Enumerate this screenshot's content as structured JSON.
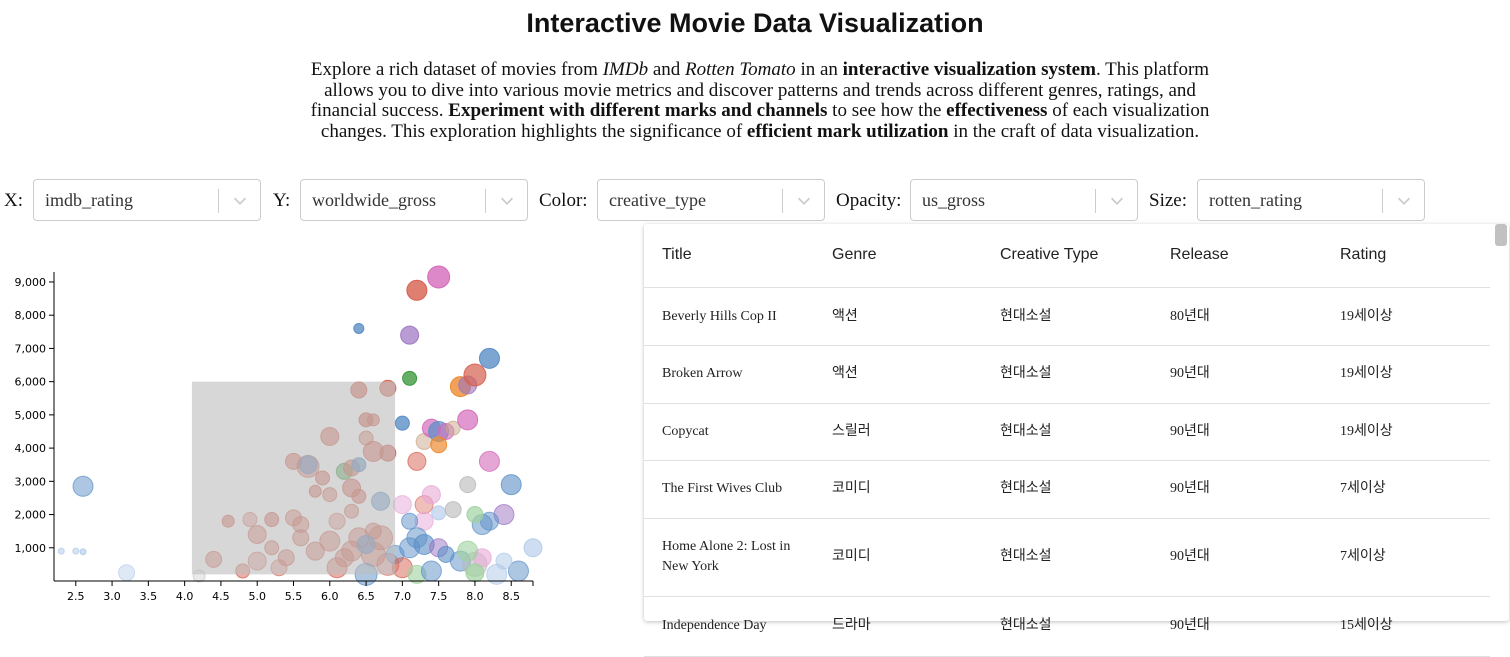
{
  "page": {
    "title": "Interactive Movie Data Visualization",
    "intro": {
      "p1": "Explore a rich dataset of movies from ",
      "imdb": "IMDb",
      "p2": " and ",
      "rotten": "Rotten Tomato",
      "p3": " in an ",
      "b1": "interactive visualization system",
      "p4": ". This platform allows you to dive into various movie metrics and discover patterns and trends across different genres, ratings, and financial success. ",
      "b2": "Experiment with different marks and channels",
      "p5": " to see how the ",
      "b3": "effectiveness",
      "p6": " of each visualization changes. This exploration highlights the significance of ",
      "b4": "efficient mark utilization",
      "p7": " in the craft of data visualization."
    }
  },
  "controls": [
    {
      "label": "X:",
      "value": "imdb_rating"
    },
    {
      "label": "Y:",
      "value": "worldwide_gross"
    },
    {
      "label": "Color:",
      "value": "creative_type"
    },
    {
      "label": "Opacity:",
      "value": "us_gross"
    },
    {
      "label": "Size:",
      "value": "rotten_rating"
    }
  ],
  "icons": {
    "dropdown": "chevron-down-icon"
  },
  "table": {
    "columns": [
      "Title",
      "Genre",
      "Creative Type",
      "Release",
      "Rating"
    ],
    "rows": [
      [
        "Beverly Hills Cop II",
        "액션",
        "현대소설",
        "80년대",
        "19세이상"
      ],
      [
        "Broken Arrow",
        "액션",
        "현대소설",
        "90년대",
        "19세이상"
      ],
      [
        "Copycat",
        "스릴러",
        "현대소설",
        "90년대",
        "19세이상"
      ],
      [
        "The First Wives Club",
        "코미디",
        "현대소설",
        "90년대",
        "7세이상"
      ],
      [
        "Home Alone 2: Lost in New York",
        "코미디",
        "현대소설",
        "90년대",
        "7세이상"
      ],
      [
        "Independence Day",
        "드라마",
        "현대소설",
        "90년대",
        "15세이상"
      ]
    ]
  },
  "chart_data": {
    "type": "scatter",
    "xlim": [
      2.2,
      8.8
    ],
    "ylim": [
      0,
      9300
    ],
    "x_ticks": [
      "2.5",
      "3.0",
      "3.5",
      "4.0",
      "4.5",
      "5.0",
      "5.5",
      "6.0",
      "6.5",
      "7.0",
      "7.5",
      "8.0",
      "8.5"
    ],
    "x_tick_values": [
      2.5,
      3.0,
      3.5,
      4.0,
      4.5,
      5.0,
      5.5,
      6.0,
      6.5,
      7.0,
      7.5,
      8.0,
      8.5
    ],
    "y_ticks": [
      "1,000",
      "2,000",
      "3,000",
      "4,000",
      "5,000",
      "6,000",
      "7,000",
      "8,000",
      "9,000"
    ],
    "y_tick_values": [
      1000,
      2000,
      3000,
      4000,
      5000,
      6000,
      7000,
      8000,
      9000
    ],
    "brush": {
      "x0": 4.1,
      "x1": 6.9,
      "y0": 200,
      "y1": 6000
    },
    "colors": {
      "red": "#d65f4f",
      "blue": "#5b8fc7",
      "purple": "#9b72c0",
      "orange": "#ee8a2e",
      "green": "#3f9a3f",
      "pink": "#d46bbb",
      "lightblue": "#aec7e8",
      "lightpink": "#e7a8d8",
      "lightgreen": "#9fd29f",
      "gray": "#b8b8b8",
      "tan": "#c9a58a"
    },
    "points": [
      [
        2.5,
        900,
        3,
        "lightblue",
        0.5
      ],
      [
        2.6,
        880,
        3,
        "lightblue",
        0.6
      ],
      [
        2.6,
        2850,
        10,
        "blue",
        0.5
      ],
      [
        2.3,
        900,
        3,
        "lightblue",
        0.5
      ],
      [
        3.2,
        250,
        8,
        "lightblue",
        0.4
      ],
      [
        4.2,
        150,
        6,
        "gray",
        0.3
      ],
      [
        4.4,
        650,
        8,
        "red",
        0.5
      ],
      [
        4.6,
        1800,
        6,
        "red",
        0.6
      ],
      [
        4.9,
        1850,
        7,
        "red",
        0.4
      ],
      [
        5.2,
        1850,
        7,
        "red",
        0.6
      ],
      [
        5.0,
        600,
        9,
        "red",
        0.4
      ],
      [
        5.3,
        400,
        8,
        "red",
        0.4
      ],
      [
        5.5,
        1900,
        8,
        "red",
        0.5
      ],
      [
        5.6,
        1700,
        8,
        "red",
        0.5
      ],
      [
        5.5,
        3600,
        8,
        "red",
        0.6
      ],
      [
        5.7,
        3450,
        11,
        "red",
        0.5
      ],
      [
        5.7,
        3500,
        9,
        "blue",
        0.6
      ],
      [
        5.9,
        3100,
        7,
        "red",
        0.6
      ],
      [
        5.8,
        2700,
        6,
        "red",
        0.6
      ],
      [
        6.0,
        4350,
        9,
        "red",
        0.6
      ],
      [
        6.0,
        2600,
        7,
        "red",
        0.5
      ],
      [
        6.1,
        1800,
        8,
        "red",
        0.4
      ],
      [
        6.2,
        3300,
        8,
        "green",
        0.6
      ],
      [
        6.3,
        2800,
        9,
        "red",
        0.6
      ],
      [
        6.3,
        3400,
        8,
        "red",
        0.6
      ],
      [
        6.4,
        3500,
        7,
        "blue",
        0.7
      ],
      [
        6.4,
        5750,
        8,
        "red",
        0.7
      ],
      [
        6.4,
        7600,
        5,
        "blue",
        0.8
      ],
      [
        6.4,
        2550,
        7,
        "red",
        0.6
      ],
      [
        6.5,
        4850,
        7,
        "red",
        0.7
      ],
      [
        6.6,
        4850,
        6,
        "red",
        0.6
      ],
      [
        6.6,
        3900,
        10,
        "red",
        0.6
      ],
      [
        6.8,
        3850,
        8,
        "red",
        0.7
      ],
      [
        6.8,
        5800,
        8,
        "red",
        0.7
      ],
      [
        6.7,
        2400,
        9,
        "blue",
        0.6
      ],
      [
        6.5,
        4300,
        7,
        "red",
        0.5
      ],
      [
        6.3,
        2100,
        7,
        "red",
        0.5
      ],
      [
        6.6,
        1500,
        8,
        "red",
        0.5
      ],
      [
        6.4,
        1300,
        10,
        "red",
        0.5
      ],
      [
        6.7,
        1300,
        12,
        "red",
        0.5
      ],
      [
        6.6,
        800,
        12,
        "red",
        0.5
      ],
      [
        6.3,
        900,
        10,
        "red",
        0.5
      ],
      [
        6.0,
        1200,
        10,
        "red",
        0.5
      ],
      [
        5.8,
        900,
        9,
        "red",
        0.5
      ],
      [
        5.6,
        1300,
        8,
        "red",
        0.5
      ],
      [
        5.4,
        700,
        8,
        "red",
        0.5
      ],
      [
        5.2,
        1000,
        7,
        "red",
        0.5
      ],
      [
        5.0,
        1400,
        9,
        "red",
        0.5
      ],
      [
        4.8,
        300,
        7,
        "red",
        0.5
      ],
      [
        6.1,
        400,
        10,
        "red",
        0.5
      ],
      [
        6.5,
        200,
        11,
        "blue",
        0.5
      ],
      [
        6.8,
        500,
        11,
        "red",
        0.4
      ],
      [
        6.2,
        700,
        9,
        "red",
        0.5
      ],
      [
        6.5,
        1100,
        9,
        "blue",
        0.6
      ],
      [
        6.9,
        800,
        9,
        "blue",
        0.5
      ],
      [
        7.0,
        4750,
        7,
        "blue",
        0.8
      ],
      [
        7.1,
        6100,
        7,
        "green",
        0.8
      ],
      [
        7.1,
        7400,
        9,
        "purple",
        0.7
      ],
      [
        7.2,
        8750,
        10,
        "red",
        0.8
      ],
      [
        7.5,
        9150,
        11,
        "pink",
        0.8
      ],
      [
        7.3,
        4200,
        8,
        "tan",
        0.5
      ],
      [
        7.4,
        4600,
        9,
        "pink",
        0.7
      ],
      [
        7.5,
        4500,
        10,
        "blue",
        0.7
      ],
      [
        7.6,
        4500,
        8,
        "pink",
        0.6
      ],
      [
        7.5,
        4100,
        8,
        "orange",
        0.7
      ],
      [
        7.7,
        4600,
        7,
        "tan",
        0.5
      ],
      [
        7.9,
        4850,
        10,
        "pink",
        0.7
      ],
      [
        7.8,
        5850,
        10,
        "orange",
        0.8
      ],
      [
        7.9,
        5900,
        9,
        "purple",
        0.6
      ],
      [
        8.0,
        6200,
        11,
        "red",
        0.7
      ],
      [
        8.2,
        6700,
        10,
        "blue",
        0.8
      ],
      [
        8.2,
        3600,
        10,
        "pink",
        0.6
      ],
      [
        7.2,
        3600,
        9,
        "red",
        0.5
      ],
      [
        7.3,
        2300,
        9,
        "red",
        0.4
      ],
      [
        7.4,
        2600,
        9,
        "lightpink",
        0.6
      ],
      [
        7.3,
        1800,
        9,
        "lightpink",
        0.5
      ],
      [
        7.5,
        2050,
        7,
        "lightblue",
        0.6
      ],
      [
        7.7,
        2150,
        8,
        "gray",
        0.6
      ],
      [
        7.9,
        2900,
        8,
        "gray",
        0.6
      ],
      [
        8.5,
        2900,
        10,
        "blue",
        0.6
      ],
      [
        8.4,
        2000,
        10,
        "purple",
        0.5
      ],
      [
        8.1,
        1700,
        10,
        "blue",
        0.5
      ],
      [
        8.2,
        1800,
        9,
        "blue",
        0.5
      ],
      [
        8.0,
        2000,
        8,
        "lightgreen",
        0.7
      ],
      [
        7.1,
        1000,
        10,
        "blue",
        0.5
      ],
      [
        7.2,
        1300,
        10,
        "blue",
        0.5
      ],
      [
        7.3,
        1100,
        10,
        "blue",
        0.6
      ],
      [
        7.5,
        1000,
        9,
        "purple",
        0.5
      ],
      [
        7.8,
        600,
        10,
        "blue",
        0.5
      ],
      [
        8.0,
        500,
        12,
        "gray",
        0.5
      ],
      [
        8.1,
        700,
        9,
        "lightpink",
        0.6
      ],
      [
        8.3,
        200,
        10,
        "lightblue",
        0.5
      ],
      [
        8.6,
        300,
        10,
        "blue",
        0.5
      ],
      [
        8.8,
        1000,
        9,
        "lightblue",
        0.6
      ],
      [
        7.0,
        400,
        10,
        "red",
        0.5
      ],
      [
        7.2,
        200,
        9,
        "lightgreen",
        0.6
      ],
      [
        7.4,
        300,
        10,
        "blue",
        0.5
      ],
      [
        7.6,
        800,
        8,
        "blue",
        0.6
      ],
      [
        7.0,
        2300,
        9,
        "lightpink",
        0.5
      ],
      [
        7.1,
        1800,
        8,
        "blue",
        0.5
      ],
      [
        8.0,
        250,
        9,
        "lightgreen",
        0.7
      ],
      [
        7.9,
        900,
        10,
        "lightgreen",
        0.6
      ],
      [
        8.4,
        600,
        8,
        "lightblue",
        0.5
      ]
    ]
  }
}
